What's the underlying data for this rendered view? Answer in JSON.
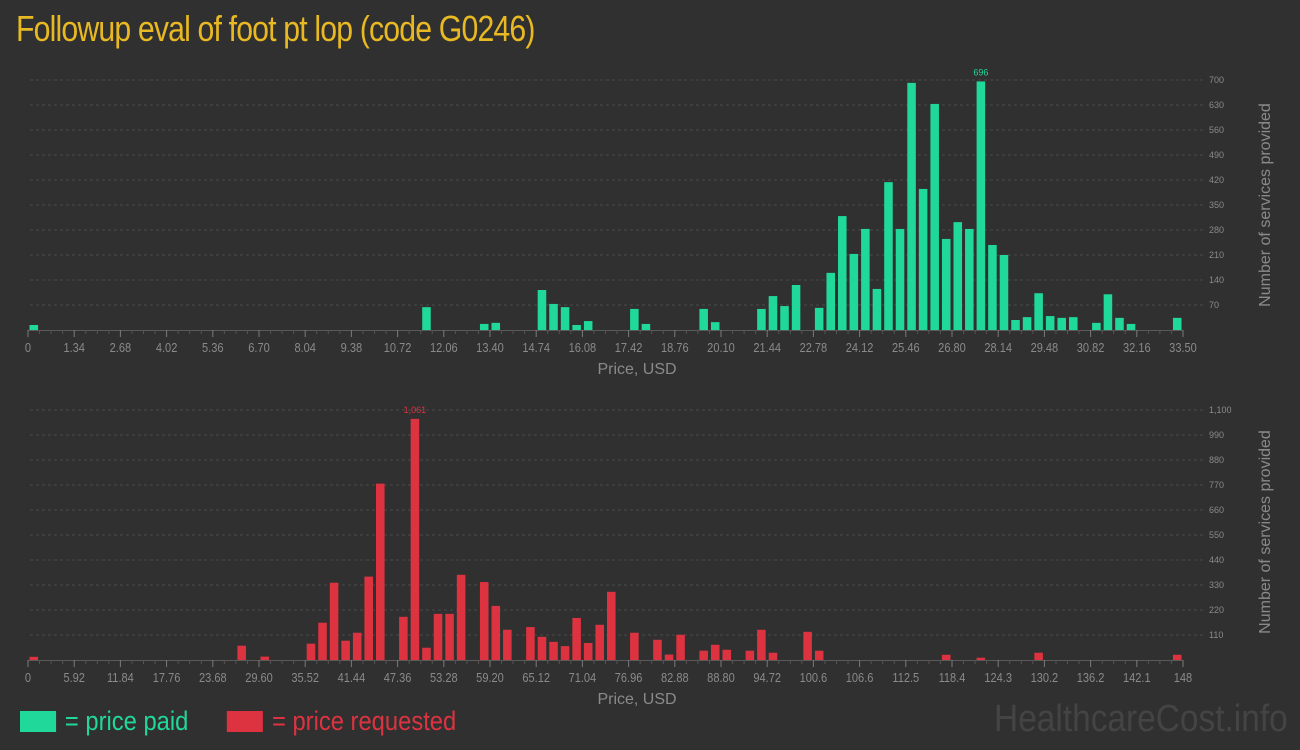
{
  "title": "Followup eval of foot pt lop (code G0246)",
  "colors": {
    "paid": "#20d89a",
    "requested": "#dd3340",
    "title": "#e8b923",
    "background": "#303030"
  },
  "legend": {
    "paid_label": "= price paid",
    "requested_label": "= price requested"
  },
  "watermark": "HealthcareCost.info",
  "chart_data": [
    {
      "type": "bar",
      "title": "",
      "series_name": "price paid",
      "xlabel": "Price, USD",
      "ylabel": "Number of services provided",
      "xlim": [
        0,
        33.5
      ],
      "ylim": [
        0,
        700
      ],
      "bin_width": 0.335,
      "x_ticks": [
        "0",
        "1.34",
        "2.68",
        "4.02",
        "5.36",
        "6.70",
        "8.04",
        "9.38",
        "10.72",
        "12.06",
        "13.40",
        "14.74",
        "16.08",
        "17.42",
        "18.76",
        "20.10",
        "21.44",
        "22.78",
        "24.12",
        "25.46",
        "26.80",
        "28.14",
        "29.48",
        "30.82",
        "32.16",
        "33.50"
      ],
      "y_ticks": [
        "70",
        "140",
        "210",
        "280",
        "350",
        "420",
        "490",
        "560",
        "630",
        "700"
      ],
      "max_label": "696",
      "max_bin": 82,
      "bins": {
        "0": 14,
        "34": 64,
        "39": 17,
        "40": 20,
        "44": 112,
        "45": 73,
        "46": 64,
        "47": 14,
        "48": 25,
        "52": 59,
        "53": 17,
        "58": 59,
        "59": 22,
        "63": 59,
        "64": 95,
        "65": 67,
        "66": 126,
        "68": 62,
        "69": 160,
        "70": 319,
        "71": 213,
        "72": 283,
        "73": 115,
        "74": 414,
        "75": 283,
        "76": 692,
        "77": 395,
        "78": 633,
        "79": 255,
        "80": 302,
        "81": 283,
        "82": 696,
        "83": 238,
        "84": 210,
        "85": 28,
        "86": 36,
        "87": 103,
        "88": 39,
        "89": 34,
        "90": 36,
        "92": 20,
        "93": 100,
        "94": 34,
        "95": 17,
        "99": 34
      },
      "grid": true
    },
    {
      "type": "bar",
      "title": "",
      "series_name": "price requested",
      "xlabel": "Price, USD",
      "ylabel": "Number of services provided",
      "xlim": [
        0,
        148
      ],
      "ylim": [
        0,
        1100
      ],
      "bin_width": 1.48,
      "x_ticks": [
        "0",
        "5.92",
        "11.84",
        "17.76",
        "23.68",
        "29.60",
        "35.52",
        "41.44",
        "47.36",
        "53.28",
        "59.20",
        "65.12",
        "71.04",
        "76.96",
        "82.88",
        "88.80",
        "94.72",
        "100.6",
        "106.6",
        "112.5",
        "118.4",
        "124.3",
        "130.2",
        "136.2",
        "142.1",
        "148"
      ],
      "y_ticks": [
        "110",
        "220",
        "330",
        "440",
        "550",
        "660",
        "770",
        "880",
        "990",
        "1,100"
      ],
      "max_label": "1,061",
      "max_bin": 33,
      "bins": {
        "0": 14,
        "18": 63,
        "20": 15,
        "24": 72,
        "25": 164,
        "26": 340,
        "27": 85,
        "28": 120,
        "29": 367,
        "30": 776,
        "32": 190,
        "33": 1061,
        "34": 54,
        "35": 203,
        "36": 203,
        "37": 375,
        "39": 343,
        "40": 238,
        "41": 133,
        "43": 145,
        "44": 102,
        "45": 80,
        "46": 61,
        "47": 185,
        "48": 75,
        "49": 155,
        "50": 300,
        "52": 120,
        "54": 89,
        "55": 24,
        "56": 111,
        "58": 41,
        "59": 67,
        "60": 45,
        "62": 41,
        "63": 133,
        "64": 32,
        "67": 124,
        "68": 41,
        "79": 23,
        "82": 10,
        "87": 32,
        "99": 23
      },
      "grid": true
    }
  ]
}
